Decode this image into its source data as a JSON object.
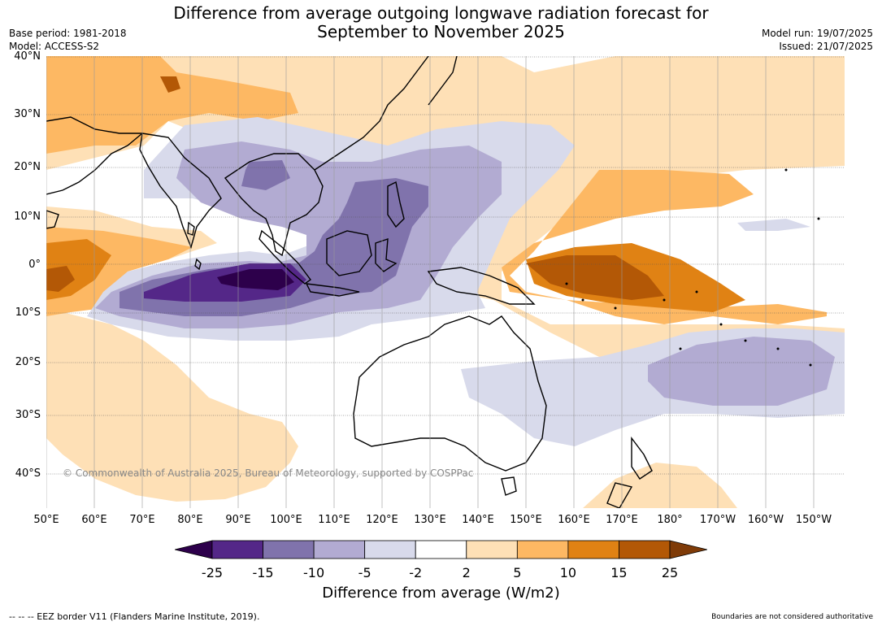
{
  "header": {
    "title_line1": "Difference from average outgoing longwave radiation forecast for",
    "title_line2": "September to November 2025",
    "base_period": "Base period: 1981-2018",
    "model": "Model: ACCESS-S2",
    "model_run": "Model run: 19/07/2025",
    "issued": "Issued: 21/07/2025"
  },
  "map": {
    "lat_labels": [
      "40°N",
      "30°N",
      "20°N",
      "10°N",
      "0°",
      "10°S",
      "20°S",
      "30°S",
      "40°S"
    ],
    "lon_labels": [
      "50°E",
      "60°E",
      "70°E",
      "80°E",
      "90°E",
      "100°E",
      "110°E",
      "120°E",
      "130°E",
      "140°E",
      "150°E",
      "160°E",
      "170°E",
      "180°",
      "170°W",
      "160°W",
      "150°W"
    ],
    "copyright": "© Commonwealth of Australia 2025, Bureau of Meteorology, supported by COSPPac"
  },
  "colorbar": {
    "ticks": [
      "-25",
      "-15",
      "-10",
      "-5",
      "-2",
      "2",
      "5",
      "10",
      "15",
      "25"
    ],
    "colors": [
      "#2d004b",
      "#542788",
      "#8073ac",
      "#b2abd2",
      "#d8daeb",
      "#ffffff",
      "#fee0b6",
      "#fdb863",
      "#e08214",
      "#b35806",
      "#7f3b08"
    ],
    "label": "Difference from average (W/m2)"
  },
  "footer": {
    "eez_note": "--  --  -- EEZ border V11 (Flanders Marine Institute, 2019).",
    "boundaries_note": "Boundaries are not considered authoritative"
  }
}
